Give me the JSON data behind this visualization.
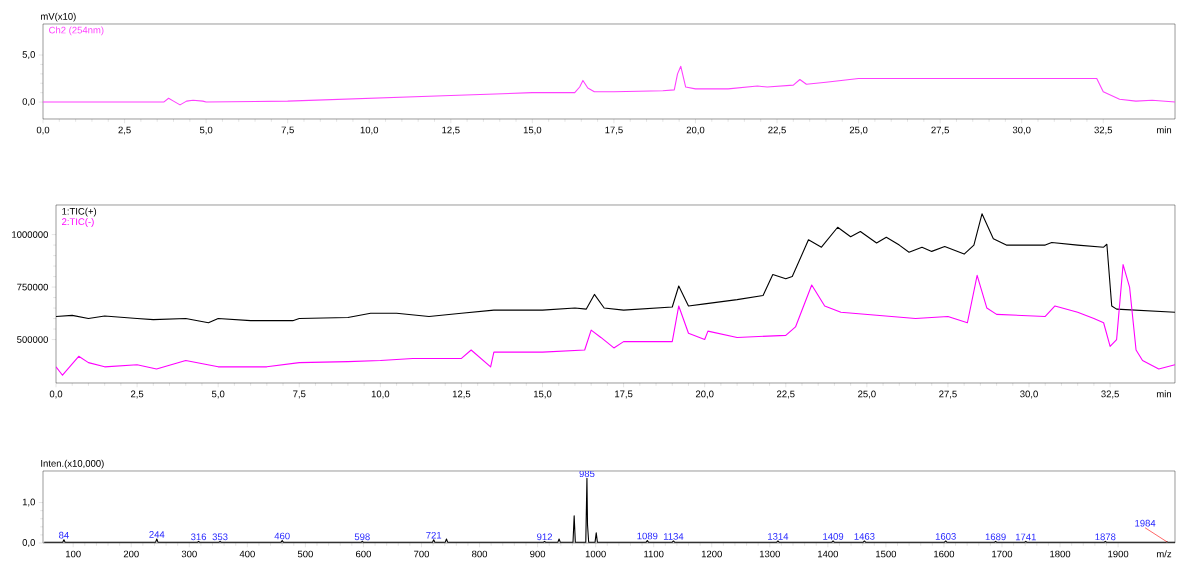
{
  "chart_data": [
    {
      "type": "line",
      "ylabel": "mV(x10)",
      "xlabel": "min",
      "legend": "top left",
      "x": [
        0,
        3.7,
        3.85,
        4.0,
        4.2,
        4.4,
        4.6,
        4.9,
        5.0,
        7.5,
        10,
        12.5,
        15,
        16.3,
        16.45,
        16.55,
        16.7,
        16.9,
        17.5,
        19,
        19.35,
        19.45,
        19.55,
        19.7,
        20,
        21,
        21.9,
        22.2,
        23.0,
        23.2,
        23.4,
        24,
        25,
        32.3,
        32.5,
        33,
        33.5,
        34,
        34.7
      ],
      "series": [
        {
          "name": "Ch2 (254nm)",
          "color": "#ff40ff",
          "values": [
            0,
            0,
            0.4,
            0.1,
            -0.3,
            0.1,
            0.2,
            0.1,
            0,
            0.1,
            0.4,
            0.7,
            1.0,
            1.0,
            1.6,
            2.3,
            1.5,
            1.1,
            1.1,
            1.2,
            1.3,
            3.0,
            3.8,
            1.6,
            1.4,
            1.4,
            1.7,
            1.6,
            1.8,
            2.4,
            1.9,
            2.1,
            2.5,
            2.5,
            1.1,
            0.3,
            0.1,
            0.2,
            0
          ]
        }
      ],
      "xlim": [
        0,
        34.7
      ],
      "ylim": [
        -1.8,
        8.3
      ],
      "xticks": [
        {
          "value": 0,
          "label": "0,0"
        },
        {
          "value": 2.5,
          "label": "2,5"
        },
        {
          "value": 5,
          "label": "5,0"
        },
        {
          "value": 7.5,
          "label": "7,5"
        },
        {
          "value": 10,
          "label": "10,0"
        },
        {
          "value": 12.5,
          "label": "12,5"
        },
        {
          "value": 15,
          "label": "15,0"
        },
        {
          "value": 17.5,
          "label": "17,5"
        },
        {
          "value": 20,
          "label": "20,0"
        },
        {
          "value": 22.5,
          "label": "22,5"
        },
        {
          "value": 25,
          "label": "25,0"
        },
        {
          "value": 27.5,
          "label": "27,5"
        },
        {
          "value": 30,
          "label": "30,0"
        },
        {
          "value": 32.5,
          "label": "32,5"
        }
      ],
      "yticks": [
        {
          "value": 0,
          "label": "0,0"
        },
        {
          "value": 5,
          "label": "5,0"
        }
      ]
    },
    {
      "type": "line",
      "xlabel": "min",
      "legend": "top left",
      "series": [
        {
          "name": "1:TIC(+)",
          "color": "#000000",
          "x": [
            0,
            0.5,
            1,
            1.5,
            2.5,
            3,
            4,
            4.7,
            5,
            6,
            7.3,
            7.5,
            9,
            9.7,
            10.5,
            11.5,
            12.5,
            13.5,
            15,
            16,
            16.35,
            16.6,
            16.9,
            17.5,
            19,
            19.2,
            19.5,
            20,
            21,
            21.8,
            22.1,
            22.5,
            22.7,
            23.2,
            23.6,
            24.1,
            24.5,
            24.8,
            25.3,
            25.6,
            26,
            26.3,
            26.7,
            27,
            27.4,
            28,
            28.3,
            28.55,
            28.9,
            29.3,
            30.5,
            30.7,
            31.5,
            32.3,
            32.4,
            32.55,
            32.7,
            34.5
          ],
          "values": [
            610000,
            615000,
            600000,
            612000,
            600000,
            595000,
            600000,
            580000,
            600000,
            590000,
            590000,
            600000,
            605000,
            625000,
            625000,
            610000,
            625000,
            640000,
            640000,
            650000,
            645000,
            715000,
            650000,
            640000,
            655000,
            755000,
            660000,
            670000,
            690000,
            710000,
            810000,
            790000,
            800000,
            975000,
            940000,
            1035000,
            990000,
            1015000,
            960000,
            987000,
            950000,
            916000,
            940000,
            920000,
            943000,
            907000,
            950000,
            1099000,
            980000,
            950000,
            950000,
            962000,
            950000,
            940000,
            954000,
            660000,
            645000,
            630000
          ]
        },
        {
          "name": "2:TIC(-)",
          "color": "#ff00ff",
          "x": [
            0,
            0.2,
            0.7,
            1,
            1.5,
            2.5,
            3.1,
            4,
            5,
            6.5,
            7.5,
            9,
            10,
            11,
            12.5,
            12.8,
            13.4,
            13.5,
            15,
            16.3,
            16.5,
            16.8,
            17.2,
            17.5,
            19,
            19.2,
            19.5,
            20,
            20.1,
            21,
            22.5,
            22.8,
            23.3,
            23.7,
            24.2,
            26.5,
            27.5,
            28.1,
            28.4,
            28.7,
            29,
            30.5,
            30.8,
            31.5,
            32,
            32.3,
            32.5,
            32.7,
            32.9,
            33.1,
            33.3,
            33.5,
            34,
            34.5
          ],
          "values": [
            370000,
            330000,
            420000,
            390000,
            370000,
            380000,
            360000,
            400000,
            370000,
            370000,
            390000,
            395000,
            400000,
            410000,
            410000,
            450000,
            370000,
            440000,
            440000,
            450000,
            545000,
            510000,
            460000,
            490000,
            490000,
            660000,
            530000,
            500000,
            540000,
            510000,
            520000,
            560000,
            760000,
            660000,
            630000,
            600000,
            610000,
            580000,
            806000,
            650000,
            620000,
            610000,
            660000,
            630000,
            600000,
            580000,
            467000,
            500000,
            857000,
            750000,
            450000,
            400000,
            360000,
            380000
          ]
        }
      ],
      "xlim": [
        0,
        34.5
      ],
      "ylim": [
        293000,
        1141000
      ],
      "xticks": [
        {
          "value": 0,
          "label": "0,0"
        },
        {
          "value": 2.5,
          "label": "2,5"
        },
        {
          "value": 5,
          "label": "5,0"
        },
        {
          "value": 7.5,
          "label": "7,5"
        },
        {
          "value": 10,
          "label": "10,0"
        },
        {
          "value": 12.5,
          "label": "12,5"
        },
        {
          "value": 15,
          "label": "15,0"
        },
        {
          "value": 17.5,
          "label": "17,5"
        },
        {
          "value": 20,
          "label": "20,0"
        },
        {
          "value": 22.5,
          "label": "22,5"
        },
        {
          "value": 25,
          "label": "25,0"
        },
        {
          "value": 27.5,
          "label": "27,5"
        },
        {
          "value": 30,
          "label": "30,0"
        },
        {
          "value": 32.5,
          "label": "32,5"
        }
      ],
      "yticks": [
        500000,
        750000,
        1000000
      ]
    },
    {
      "type": "line",
      "xlabel": "m/z",
      "ylabel": "Inten.(x10,000)",
      "color": "#000000",
      "x": [
        50,
        82,
        84,
        86,
        242,
        244,
        246,
        314,
        316,
        318,
        351,
        353,
        355,
        458,
        460,
        462,
        596,
        598,
        600,
        719,
        721,
        723,
        741,
        743,
        745,
        910,
        912,
        914,
        935,
        937,
        939,
        961,
        963,
        965,
        983,
        985,
        986,
        988,
        999,
        1001,
        1003,
        1087,
        1089,
        1091,
        1132,
        1134,
        1136,
        1312,
        1314,
        1316,
        1407,
        1409,
        1411,
        1461,
        1463,
        1465,
        1601,
        1603,
        1605,
        1687,
        1689,
        1691,
        1739,
        1741,
        1743,
        1876,
        1878,
        1880,
        1982,
        1984,
        1986,
        1998
      ],
      "values": [
        0.02,
        0.02,
        0.08,
        0.02,
        0.02,
        0.1,
        0.02,
        0.02,
        0.04,
        0.02,
        0.02,
        0.04,
        0.02,
        0.02,
        0.06,
        0.02,
        0.02,
        0.04,
        0.02,
        0.02,
        0.08,
        0.02,
        0.02,
        0.1,
        0.02,
        0.02,
        0.04,
        0.02,
        0.02,
        0.1,
        0.02,
        0.02,
        0.67,
        0.02,
        0.02,
        1.6,
        0.45,
        0.02,
        0.02,
        0.25,
        0.02,
        0.02,
        0.06,
        0.02,
        0.02,
        0.05,
        0.02,
        0.02,
        0.05,
        0.02,
        0.02,
        0.05,
        0.02,
        0.02,
        0.05,
        0.02,
        0.02,
        0.05,
        0.02,
        0.02,
        0.04,
        0.02,
        0.02,
        0.04,
        0.02,
        0.02,
        0.04,
        0.02,
        0.02,
        0.03,
        0.02,
        0.02
      ],
      "xlim": [
        48,
        1998
      ],
      "ylim": [
        0,
        1.78
      ],
      "xticks": [
        100,
        200,
        300,
        400,
        500,
        600,
        700,
        800,
        900,
        1000,
        1100,
        1200,
        1300,
        1400,
        1500,
        1600,
        1700,
        1800,
        1900
      ],
      "yticks": [
        {
          "value": 0,
          "label": "0,0"
        },
        {
          "value": 1,
          "label": "1,0"
        }
      ],
      "annotations": [
        {
          "text": "84",
          "x": 84,
          "y": 0.08
        },
        {
          "text": "244",
          "x": 244,
          "y": 0.1
        },
        {
          "text": "316",
          "x": 316,
          "y": 0.04
        },
        {
          "text": "353",
          "x": 353,
          "y": 0.04
        },
        {
          "text": "460",
          "x": 460,
          "y": 0.06
        },
        {
          "text": "598",
          "x": 598,
          "y": 0.04
        },
        {
          "text": "721",
          "x": 721,
          "y": 0.08
        },
        {
          "text": "912",
          "x": 912,
          "y": 0.04
        },
        {
          "text": "985",
          "x": 985,
          "y": 1.6
        },
        {
          "text": "1089",
          "x": 1089,
          "y": 0.06
        },
        {
          "text": "1134",
          "x": 1134,
          "y": 0.05
        },
        {
          "text": "1314",
          "x": 1314,
          "y": 0.05
        },
        {
          "text": "1409",
          "x": 1409,
          "y": 0.05
        },
        {
          "text": "1463",
          "x": 1463,
          "y": 0.05
        },
        {
          "text": "1603",
          "x": 1603,
          "y": 0.05
        },
        {
          "text": "1689",
          "x": 1689,
          "y": 0.04
        },
        {
          "text": "1741",
          "x": 1741,
          "y": 0.04
        },
        {
          "text": "1878",
          "x": 1878,
          "y": 0.04
        },
        {
          "text": "1984",
          "x": 1984,
          "y": 0.03
        }
      ]
    }
  ]
}
